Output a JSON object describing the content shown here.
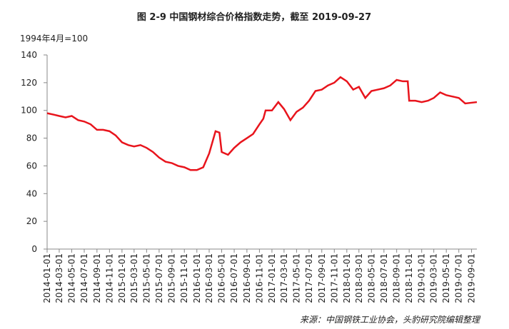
{
  "chart_data": {
    "type": "line",
    "title": "图 2-9 中国钢材综合价格指数走势，截至 2019-09-27",
    "y_label": "1994年4月=100",
    "source": "来源：中国钢铁工业协会，头豹研究院编辑整理",
    "x": [
      "2014-01-01",
      "2014-02-01",
      "2014-03-01",
      "2014-04-01",
      "2014-05-01",
      "2014-06-01",
      "2014-07-01",
      "2014-08-01",
      "2014-09-01",
      "2014-10-01",
      "2014-11-01",
      "2014-12-01",
      "2015-01-01",
      "2015-02-01",
      "2015-03-01",
      "2015-04-01",
      "2015-05-01",
      "2015-06-01",
      "2015-07-01",
      "2015-08-01",
      "2015-09-01",
      "2015-10-01",
      "2015-11-01",
      "2015-12-01",
      "2016-01-01",
      "2016-02-01",
      "2016-03-01",
      "2016-04-01",
      "2016-04-20",
      "2016-05-01",
      "2016-06-01",
      "2016-07-01",
      "2016-08-01",
      "2016-09-01",
      "2016-10-01",
      "2016-11-01",
      "2016-11-20",
      "2016-12-01",
      "2017-01-01",
      "2017-02-01",
      "2017-03-01",
      "2017-04-01",
      "2017-05-01",
      "2017-06-01",
      "2017-07-01",
      "2017-08-01",
      "2017-09-01",
      "2017-10-01",
      "2017-11-01",
      "2017-12-01",
      "2018-01-01",
      "2018-02-01",
      "2018-03-01",
      "2018-04-01",
      "2018-05-01",
      "2018-06-01",
      "2018-07-01",
      "2018-08-01",
      "2018-09-01",
      "2018-10-01",
      "2018-10-25",
      "2018-11-01",
      "2018-12-01",
      "2019-01-01",
      "2019-02-01",
      "2019-03-01",
      "2019-04-01",
      "2019-05-01",
      "2019-06-01",
      "2019-07-01",
      "2019-08-01",
      "2019-09-27"
    ],
    "series": [
      {
        "name": "中国钢材综合价格指数",
        "color": "#e8141c",
        "values": [
          98,
          97,
          96,
          95,
          96,
          93,
          92,
          90,
          86,
          86,
          85,
          82,
          77,
          75,
          74,
          75,
          73,
          70,
          66,
          63,
          62,
          60,
          59,
          57,
          57,
          59,
          69,
          85,
          84,
          70,
          68,
          73,
          77,
          80,
          83,
          90,
          94,
          100,
          100,
          106,
          101,
          93,
          99,
          102,
          107,
          114,
          115,
          118,
          120,
          124,
          121,
          115,
          117,
          109,
          114,
          115,
          116,
          118,
          122,
          121,
          121,
          107,
          107,
          106,
          107,
          109,
          113,
          111,
          110,
          109,
          105,
          106
        ]
      }
    ],
    "ylim": [
      0,
      140
    ],
    "yticks": [
      0,
      20,
      40,
      60,
      80,
      100,
      120,
      140
    ],
    "xlim": [
      "2014-01-01",
      "2019-09-27"
    ],
    "xticks": [
      "2014-01-01",
      "2014-03-01",
      "2014-05-01",
      "2014-07-01",
      "2014-09-01",
      "2014-11-01",
      "2015-01-01",
      "2015-03-01",
      "2015-05-01",
      "2015-07-01",
      "2015-09-01",
      "2015-11-01",
      "2016-01-01",
      "2016-03-01",
      "2016-05-01",
      "2016-07-01",
      "2016-09-01",
      "2016-11-01",
      "2017-01-01",
      "2017-03-01",
      "2017-05-01",
      "2017-07-01",
      "2017-09-01",
      "2017-11-01",
      "2018-01-01",
      "2018-03-01",
      "2018-05-01",
      "2018-07-01",
      "2018-09-01",
      "2018-11-01",
      "2019-01-01",
      "2019-03-01",
      "2019-05-01",
      "2019-07-01",
      "2019-09-01"
    ]
  }
}
